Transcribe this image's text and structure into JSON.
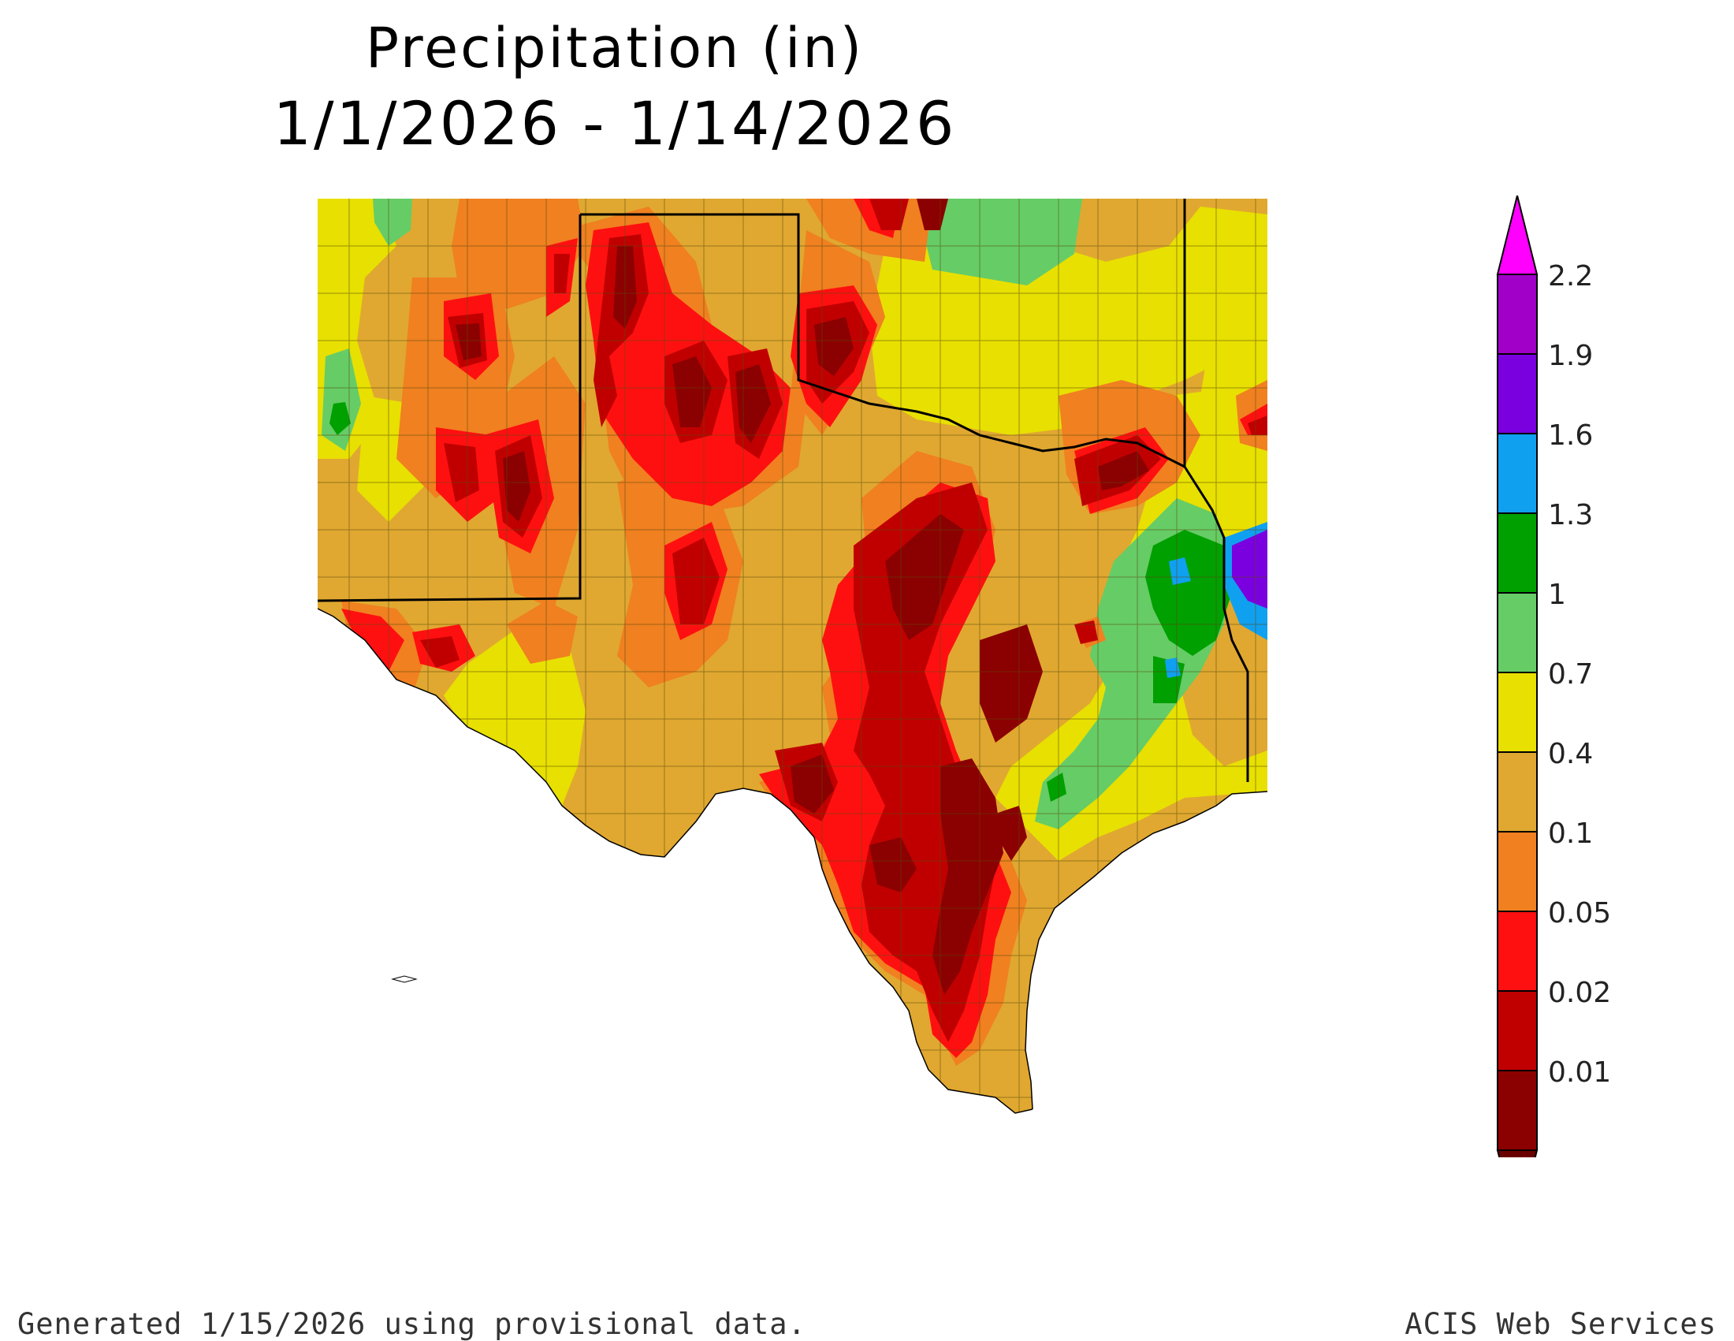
{
  "title": {
    "line1": "Precipitation (in)",
    "line2": "1/1/2026 - 1/14/2026"
  },
  "legend": {
    "levels": [
      {
        "label": "0.01",
        "color": "#8b0000"
      },
      {
        "label": "0.02",
        "color": "#c00000"
      },
      {
        "label": "0.05",
        "color": "#ff1010"
      },
      {
        "label": "0.1",
        "color": "#f08020"
      },
      {
        "label": "0.4",
        "color": "#e0a830"
      },
      {
        "label": "0.7",
        "color": "#e8e000"
      },
      {
        "label": "1",
        "color": "#66cc66"
      },
      {
        "label": "1.3",
        "color": "#00a000"
      },
      {
        "label": "1.6",
        "color": "#10a0f0"
      },
      {
        "label": "1.9",
        "color": "#7a00e0"
      },
      {
        "label": "2.2",
        "color": "#a000c8"
      }
    ],
    "under_color": "#6a0000",
    "over_color": "#ff00ff"
  },
  "footer": {
    "left": "Generated 1/15/2026  using provisional data.",
    "right": "ACIS Web Services"
  }
}
